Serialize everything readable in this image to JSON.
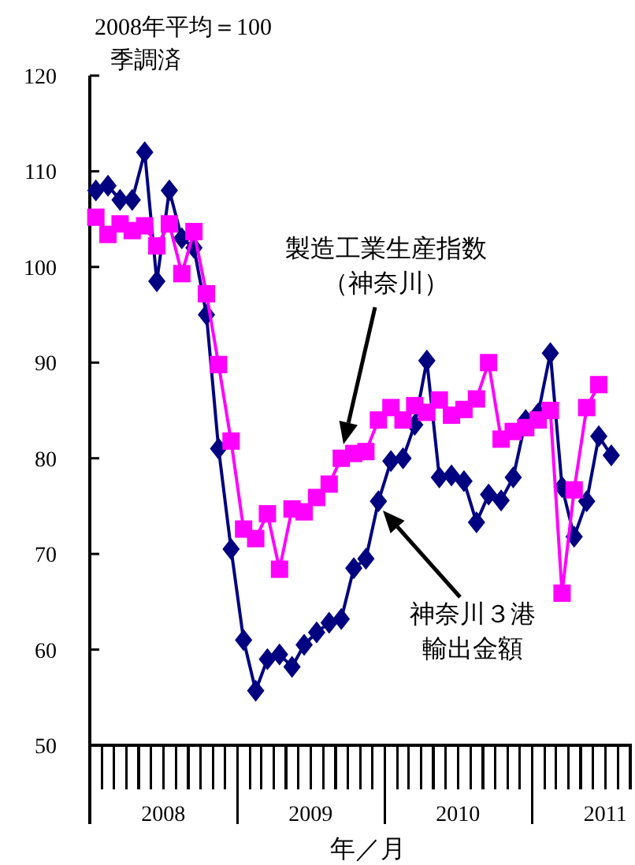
{
  "chart_data": {
    "type": "line",
    "title": "2008年平均＝100",
    "subtitle": "季調済",
    "xlabel": "年／月",
    "x": [
      "2008-01-16",
      "2008-02-15",
      "2008-03-16",
      "2008-04-15",
      "2008-05-16",
      "2008-06-15",
      "2008-07-16",
      "2008-08-16",
      "2008-09-15",
      "2008-10-16",
      "2008-11-15",
      "2008-12-16",
      "2009-01-16",
      "2009-02-15",
      "2009-03-16",
      "2009-04-15",
      "2009-05-16",
      "2009-06-15",
      "2009-07-16",
      "2009-08-16",
      "2009-09-15",
      "2009-10-16",
      "2009-11-15",
      "2009-12-16",
      "2010-01-16",
      "2010-02-15",
      "2010-03-16",
      "2010-04-15",
      "2010-05-16",
      "2010-06-15",
      "2010-07-16",
      "2010-08-16",
      "2010-09-15",
      "2010-10-16",
      "2010-11-15",
      "2010-12-16",
      "2011-01-16",
      "2011-02-15",
      "2011-03-16",
      "2011-04-15",
      "2011-05-16",
      "2011-06-15",
      "2011-07-16"
    ],
    "series": [
      {
        "color": "#000080",
        "marker": "diamond",
        "values": [
          108,
          108.5,
          107,
          107,
          112,
          98.5,
          108,
          103,
          102,
          95,
          81,
          70.5,
          61,
          55.7,
          59,
          59.5,
          58.2,
          60.5,
          61.8,
          62.8,
          63.2,
          68.5,
          69.5,
          75.5,
          79.7,
          80,
          83.5,
          90.2,
          78,
          78.2,
          77.6,
          73.3,
          76.2,
          75.6,
          78,
          84,
          84.7,
          91,
          77,
          71.8,
          75.5,
          82.3,
          80.3
        ]
      },
      {
        "color": "#ff00ff",
        "marker": "square",
        "values": [
          105.2,
          103.4,
          104.5,
          103.8,
          104.3,
          102.2,
          104.5,
          99.3,
          103.7,
          97.2,
          89.8,
          81.8,
          72.6,
          71.6,
          74.2,
          68.4,
          74.7,
          74.4,
          75.9,
          77.3,
          80,
          80.5,
          80.7,
          84,
          85.3,
          84,
          85.5,
          84.8,
          86.1,
          84.5,
          85.1,
          86.2,
          90,
          82,
          82.8,
          83.2,
          84,
          85,
          65.9,
          76.7,
          85.3,
          87.7,
          null
        ]
      }
    ],
    "ylim": [
      50,
      120
    ],
    "yticks": [
      50,
      60,
      70,
      80,
      90,
      100,
      110,
      120
    ],
    "xlim": [
      "2008-01-01",
      "2011-09-01"
    ],
    "xticks": [
      {
        "value": "2008-01-01",
        "label": null
      },
      {
        "value": "2008-02-01",
        "label": null
      },
      {
        "value": "2008-03-01",
        "label": null
      },
      {
        "value": "2008-04-01",
        "label": null
      },
      {
        "value": "2008-05-01",
        "label": null
      },
      {
        "value": "2008-06-01",
        "label": null
      },
      {
        "value": "2008-08-01",
        "label": null
      },
      {
        "value": "2008-09-01",
        "label": null
      },
      {
        "value": "2008-10-01",
        "label": null
      },
      {
        "value": "2008-11-01",
        "label": null
      },
      {
        "value": "2008-12-01",
        "label": null
      },
      {
        "value": "2009-01-01",
        "label": null
      },
      {
        "value": "2009-02-01",
        "label": null
      },
      {
        "value": "2009-03-01",
        "label": null
      },
      {
        "value": "2009-04-01",
        "label": null
      },
      {
        "value": "2009-05-01",
        "label": null
      },
      {
        "value": "2009-06-01",
        "label": null
      },
      {
        "value": "2009-08-01",
        "label": null
      },
      {
        "value": "2009-09-01",
        "label": null
      },
      {
        "value": "2009-10-01",
        "label": null
      },
      {
        "value": "2009-11-01",
        "label": null
      },
      {
        "value": "2009-12-01",
        "label": null
      },
      {
        "value": "2010-01-01",
        "label": null
      },
      {
        "value": "2010-02-01",
        "label": null
      },
      {
        "value": "2010-03-01",
        "label": null
      },
      {
        "value": "2010-04-01",
        "label": null
      },
      {
        "value": "2010-05-01",
        "label": null
      },
      {
        "value": "2010-06-01",
        "label": null
      },
      {
        "value": "2010-08-01",
        "label": null
      },
      {
        "value": "2010-09-01",
        "label": null
      },
      {
        "value": "2010-10-01",
        "label": null
      },
      {
        "value": "2010-11-01",
        "label": null
      },
      {
        "value": "2010-12-01",
        "label": null
      },
      {
        "value": "2011-01-01",
        "label": null
      },
      {
        "value": "2011-02-01",
        "label": null
      },
      {
        "value": "2011-03-01",
        "label": null
      },
      {
        "value": "2011-04-01",
        "label": null
      },
      {
        "value": "2011-05-01",
        "label": null
      },
      {
        "value": "2011-06-01",
        "label": null
      },
      {
        "value": "2011-08-01",
        "label": null
      },
      {
        "value": "2011-09-01",
        "label": null
      },
      {
        "value": "2008-07-01",
        "label": "2008"
      },
      {
        "value": "2009-07-01",
        "label": "2009"
      },
      {
        "value": "2010-07-01",
        "label": "2010"
      },
      {
        "value": "2011-07-01",
        "label": "2011"
      }
    ],
    "annotations": [
      "製造工業生産指数（神奈川）",
      "神奈川３港輸出金額"
    ],
    "grid": false
  }
}
